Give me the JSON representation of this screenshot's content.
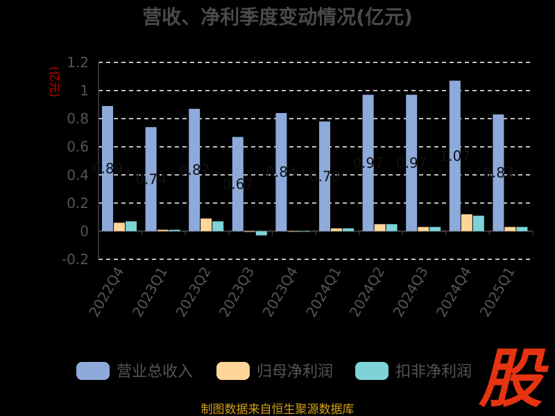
{
  "chart_data": {
    "type": "bar",
    "title": "营收、净利季度变动情况(亿元)",
    "ylabel": "(亿元)",
    "xlabel": "",
    "ylim": [
      -0.2,
      1.2
    ],
    "yticks": [
      "-0.2",
      "0",
      "0.2",
      "0.4",
      "0.6",
      "0.8",
      "1",
      "1.2"
    ],
    "ytick_values": [
      -0.2,
      0,
      0.2,
      0.4,
      0.6,
      0.8,
      1.0,
      1.2
    ],
    "grid": true,
    "legend_position": "bottom",
    "categories": [
      "2022Q4",
      "2023Q1",
      "2023Q2",
      "2023Q3",
      "2023Q4",
      "2024Q1",
      "2024Q2",
      "2024Q3",
      "2024Q4",
      "2025Q1"
    ],
    "series": [
      {
        "name": "营业总收入",
        "color": "#8eaadb",
        "values": [
          0.89,
          0.74,
          0.87,
          0.67,
          0.84,
          0.78,
          0.97,
          0.97,
          1.07,
          0.83
        ],
        "labels": [
          "0.89",
          "0.74",
          "0.87",
          "0.67",
          "0.84",
          "0.78",
          "0.97",
          "0.97",
          "1.07",
          "0.83"
        ]
      },
      {
        "name": "归母净利润",
        "color": "#ffd699",
        "values": [
          0.06,
          0.01,
          0.09,
          -0.005,
          0.0,
          0.02,
          0.05,
          0.03,
          0.12,
          0.03
        ]
      },
      {
        "name": "扣非净利润",
        "color": "#7dd3d8",
        "values": [
          0.07,
          0.01,
          0.07,
          -0.03,
          0.0,
          0.02,
          0.05,
          0.03,
          0.11,
          0.03
        ]
      }
    ]
  },
  "footer": "制图数据来自恒生聚源数据库",
  "logo_text": "股"
}
